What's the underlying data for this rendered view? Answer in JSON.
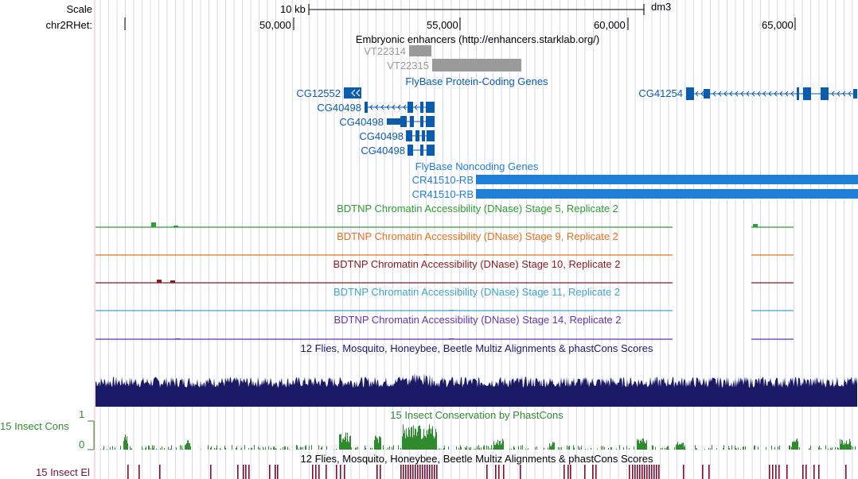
{
  "header": {
    "scale_label": "Scale",
    "scale_bar_text": "10 kb",
    "assembly": "dm3",
    "chrom_label": "chr2RHet:",
    "ticks": [
      "50,000",
      "55,000",
      "60,000",
      "65,000"
    ]
  },
  "tracks": {
    "enhancers": {
      "title": "Embryonic enhancers (http://enhancers.starklab.org/)",
      "items": [
        "VT22314",
        "VT22315"
      ]
    },
    "flybase_coding": {
      "title": "FlyBase Protein-Coding Genes",
      "genes": [
        "CG12552",
        "CG40498",
        "CG40498",
        "CG40498",
        "CG40498",
        "CG41254"
      ]
    },
    "flybase_noncoding": {
      "title": "FlyBase Noncoding Genes",
      "genes": [
        "CR41510-RB",
        "CR41510-RB"
      ]
    },
    "dnase": [
      {
        "title": "BDTNP Chromatin Accessibility (DNase) Stage 5, Replicate 2",
        "color": "#2f9e2f"
      },
      {
        "title": "BDTNP Chromatin Accessibility (DNase) Stage 9, Replicate 2",
        "color": "#e8701a"
      },
      {
        "title": "BDTNP Chromatin Accessibility (DNase) Stage 10, Replicate 2",
        "color": "#8b1a1a"
      },
      {
        "title": "BDTNP Chromatin Accessibility (DNase) Stage 11, Replicate 2",
        "color": "#3ea5c9"
      },
      {
        "title": "BDTNP Chromatin Accessibility (DNase) Stage 14, Replicate 2",
        "color": "#6a35a8"
      }
    ],
    "multiz": {
      "title": "12 Flies, Mosquito, Honeybee, Beetle Multiz Alignments & phastCons Scores"
    },
    "insect_cons": {
      "title": "15 Insect Conservation by PhastCons",
      "side_label": "15 Insect Cons",
      "axis_max": "1",
      "axis_min": "0"
    },
    "insect_el": {
      "title": "12 Flies, Mosquito, Honeybee, Beetle Multiz Alignments & phastCons Scores",
      "side_label": "15 Insect El"
    }
  },
  "colors": {
    "gene_blue": "#0b5cad",
    "noncoding_blue": "#1f7fd6",
    "multiz_navy": "#1a1a66",
    "cons_green": "#2e8b2e",
    "el_maroon": "#7a1030",
    "enhancer_gray": "#9a9a9a"
  }
}
